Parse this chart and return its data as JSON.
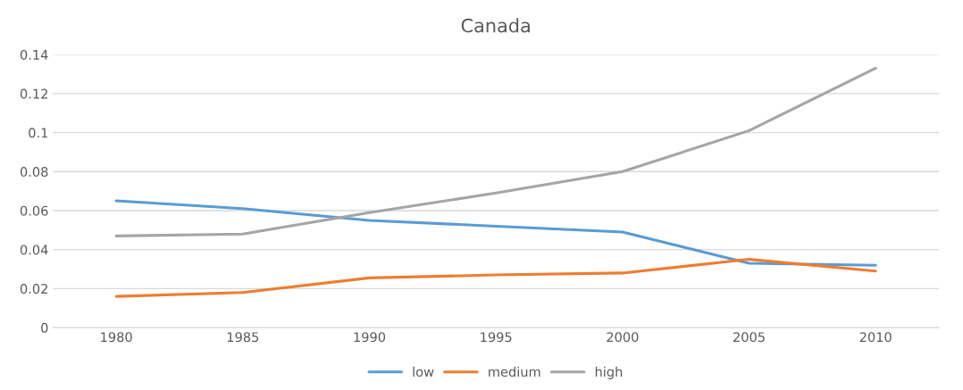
{
  "chart_data": {
    "type": "line",
    "title": "Canada",
    "categories": [
      "1980",
      "1985",
      "1990",
      "1995",
      "2000",
      "2005",
      "2010"
    ],
    "series": [
      {
        "name": "low",
        "color": "#5b9bd5",
        "values": [
          0.065,
          0.061,
          0.055,
          0.052,
          0.049,
          0.033,
          0.032
        ]
      },
      {
        "name": "medium",
        "color": "#ed7d31",
        "values": [
          0.016,
          0.018,
          0.0255,
          0.027,
          0.028,
          0.035,
          0.029
        ]
      },
      {
        "name": "high",
        "color": "#a5a5a5",
        "values": [
          0.047,
          0.048,
          0.059,
          0.069,
          0.08,
          0.101,
          0.133
        ]
      }
    ],
    "ylim": [
      0,
      0.14
    ],
    "yticks": [
      0,
      0.02,
      0.04,
      0.06,
      0.08,
      0.1,
      0.12,
      0.14
    ],
    "grid": "y",
    "legend": "bottom",
    "marker": "none",
    "line_style": "solid"
  }
}
